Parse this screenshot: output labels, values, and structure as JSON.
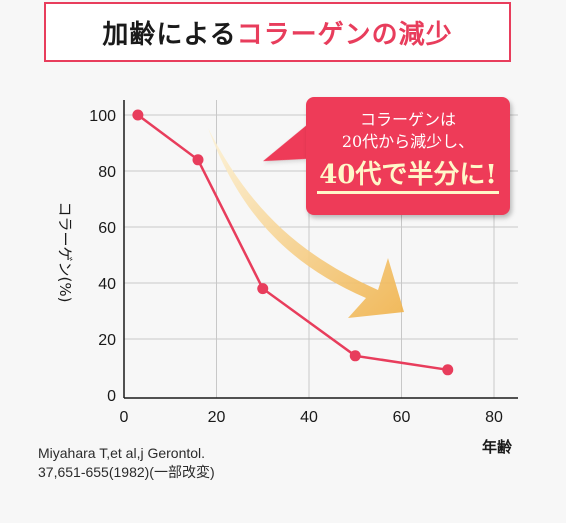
{
  "header": {
    "title_part1": "加齢による",
    "title_part2": "コラーゲンの減少"
  },
  "callout": {
    "line1": "コラーゲンは",
    "line2": "20代から減少し、",
    "line3": "40代で半分に!"
  },
  "citation": {
    "line1": "Miyahara T,et al,j Gerontol.",
    "line2": "37,651-655(1982)(一部改変)"
  },
  "colors": {
    "accent": "#e83d5c",
    "arrow_start": "#fdf3d8",
    "arrow_end": "#f0b24a"
  },
  "chart_data": {
    "type": "line",
    "x": [
      3,
      16,
      30,
      50,
      70
    ],
    "values": [
      100,
      84,
      38,
      14,
      9
    ],
    "xlabel": "年齢",
    "ylabel": "コラーゲン(%)",
    "xlim": [
      0,
      85
    ],
    "ylim": [
      0,
      105
    ],
    "x_ticks": [
      "0",
      "20",
      "40",
      "60",
      "80"
    ],
    "y_ticks": [
      "0",
      "20",
      "40",
      "60",
      "80",
      "100"
    ],
    "grid": true
  }
}
